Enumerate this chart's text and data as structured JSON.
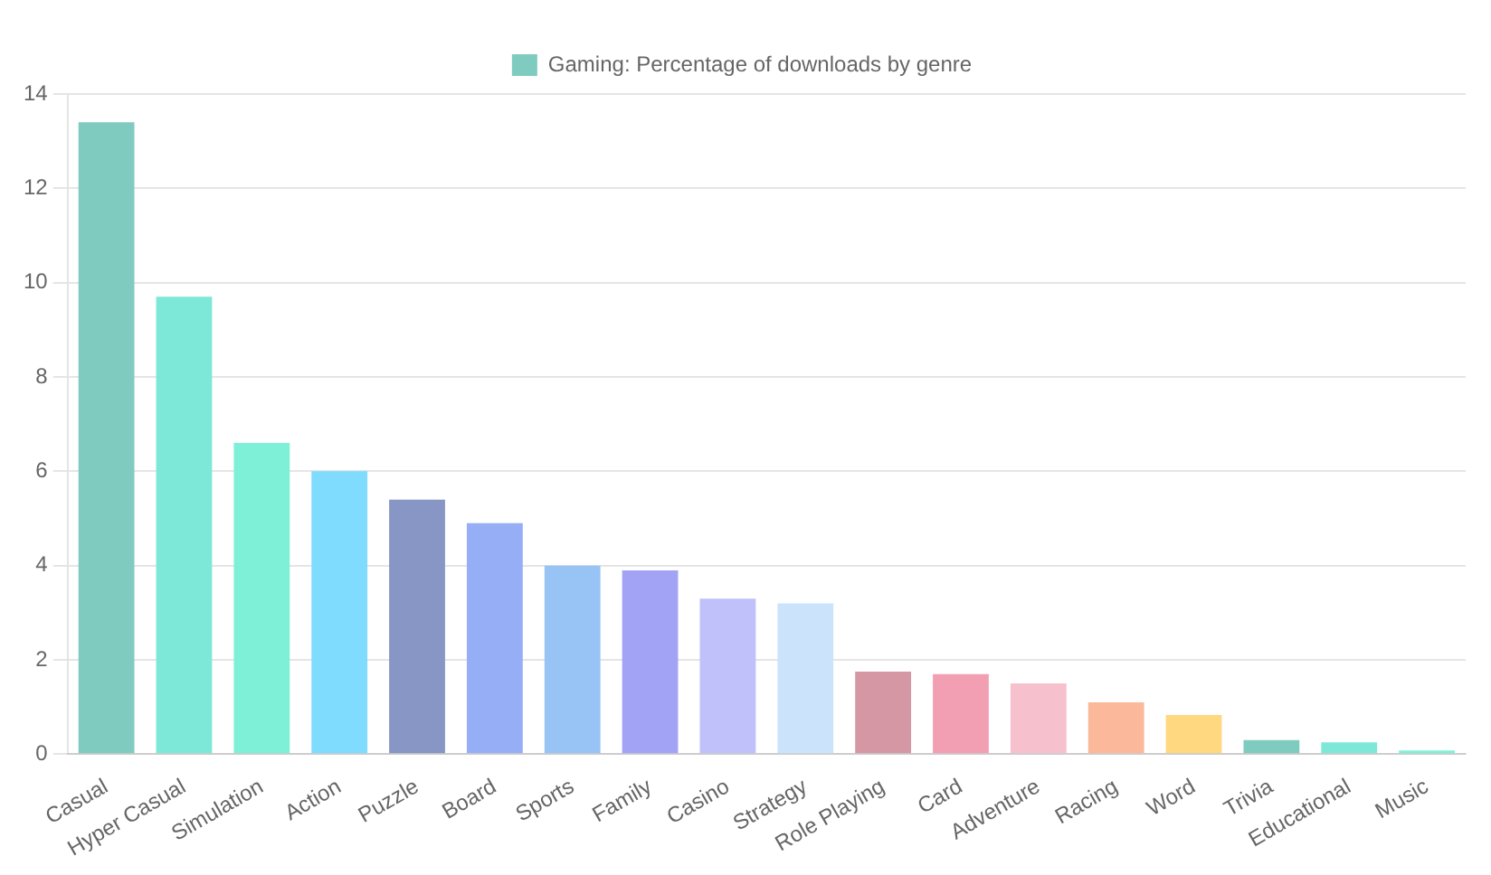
{
  "chart_data": {
    "type": "bar",
    "legend": "top",
    "grid": "y",
    "categories": [
      "Casual",
      "Hyper Casual",
      "Simulation",
      "Action",
      "Puzzle",
      "Board",
      "Sports",
      "Family",
      "Casino",
      "Strategy",
      "Role Playing",
      "Card",
      "Adventure",
      "Racing",
      "Word",
      "Trivia",
      "Educational",
      "Music"
    ],
    "series": [
      {
        "name": "Gaming: Percentage of downloads by genre",
        "color": "#80cbc0",
        "values": [
          13.4,
          9.7,
          6.6,
          6.0,
          5.4,
          4.9,
          4.0,
          3.9,
          3.3,
          3.2,
          1.75,
          1.7,
          1.5,
          1.1,
          0.83,
          0.3,
          0.25,
          0.08
        ],
        "colors": [
          "#80cbc0",
          "#7ee8d8",
          "#7ef0d8",
          "#7fdcff",
          "#8796c4",
          "#96aef5",
          "#98c4f5",
          "#a3a3f5",
          "#c0c0fb",
          "#cce3fc",
          "#d497a3",
          "#f29fb3",
          "#f7c0cd",
          "#fbb89a",
          "#ffd880",
          "#80cbc0",
          "#7ee8d8",
          "#7ef0d8"
        ]
      }
    ],
    "ylim": [
      0,
      14
    ],
    "yticks": [
      0,
      2,
      4,
      6,
      8,
      10,
      12,
      14
    ]
  }
}
